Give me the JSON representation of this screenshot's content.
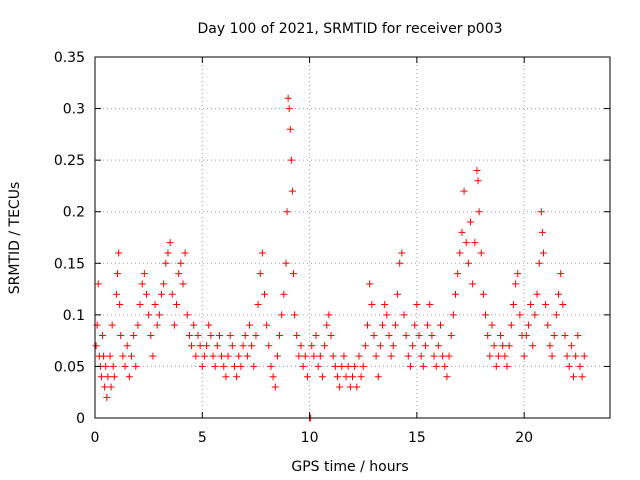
{
  "chart_data": {
    "type": "scatter",
    "title": "Day 100 of 2021, SRMTID for receiver p003",
    "xlabel": "GPS time / hours",
    "ylabel": "SRMTID / TECUs",
    "xlim": [
      0,
      24
    ],
    "ylim": [
      0,
      0.35
    ],
    "xticks": [
      0,
      5,
      10,
      15,
      20
    ],
    "xtick_labels": [
      "0",
      "5",
      "10",
      "15",
      "20"
    ],
    "yticks": [
      0,
      0.05,
      0.1,
      0.15,
      0.2,
      0.25,
      0.3,
      0.35
    ],
    "ytick_labels": [
      "0",
      "0.05",
      "0.1",
      "0.15",
      "0.2",
      "0.25",
      "0.3",
      "0.35"
    ],
    "grid": true,
    "marker": "plus",
    "color": "#ff0000",
    "series": [
      {
        "name": "SRMTID",
        "points": [
          [
            0.05,
            0.07
          ],
          [
            0.1,
            0.09
          ],
          [
            0.15,
            0.13
          ],
          [
            0.2,
            0.06
          ],
          [
            0.25,
            0.05
          ],
          [
            0.3,
            0.04
          ],
          [
            0.35,
            0.08
          ],
          [
            0.4,
            0.06
          ],
          [
            0.45,
            0.03
          ],
          [
            0.5,
            0.05
          ],
          [
            0.55,
            0.02
          ],
          [
            0.6,
            0.04
          ],
          [
            0.7,
            0.06
          ],
          [
            0.75,
            0.03
          ],
          [
            0.8,
            0.09
          ],
          [
            0.85,
            0.05
          ],
          [
            0.9,
            0.04
          ],
          [
            1.0,
            0.12
          ],
          [
            1.05,
            0.14
          ],
          [
            1.1,
            0.16
          ],
          [
            1.15,
            0.11
          ],
          [
            1.2,
            0.08
          ],
          [
            1.3,
            0.06
          ],
          [
            1.4,
            0.05
          ],
          [
            1.5,
            0.07
          ],
          [
            1.6,
            0.04
          ],
          [
            1.7,
            0.06
          ],
          [
            1.8,
            0.08
          ],
          [
            1.9,
            0.05
          ],
          [
            2.0,
            0.09
          ],
          [
            2.1,
            0.11
          ],
          [
            2.2,
            0.13
          ],
          [
            2.3,
            0.14
          ],
          [
            2.4,
            0.12
          ],
          [
            2.5,
            0.1
          ],
          [
            2.6,
            0.08
          ],
          [
            2.7,
            0.06
          ],
          [
            2.8,
            0.11
          ],
          [
            2.9,
            0.09
          ],
          [
            3.0,
            0.1
          ],
          [
            3.1,
            0.12
          ],
          [
            3.2,
            0.13
          ],
          [
            3.3,
            0.15
          ],
          [
            3.4,
            0.16
          ],
          [
            3.5,
            0.17
          ],
          [
            3.6,
            0.12
          ],
          [
            3.7,
            0.09
          ],
          [
            3.8,
            0.11
          ],
          [
            3.9,
            0.14
          ],
          [
            4.0,
            0.15
          ],
          [
            4.1,
            0.13
          ],
          [
            4.2,
            0.16
          ],
          [
            4.3,
            0.1
          ],
          [
            4.4,
            0.08
          ],
          [
            4.5,
            0.07
          ],
          [
            4.6,
            0.09
          ],
          [
            4.7,
            0.06
          ],
          [
            4.8,
            0.08
          ],
          [
            4.9,
            0.07
          ],
          [
            5.0,
            0.05
          ],
          [
            5.1,
            0.06
          ],
          [
            5.2,
            0.07
          ],
          [
            5.3,
            0.09
          ],
          [
            5.4,
            0.08
          ],
          [
            5.5,
            0.06
          ],
          [
            5.6,
            0.05
          ],
          [
            5.7,
            0.07
          ],
          [
            5.8,
            0.08
          ],
          [
            5.9,
            0.06
          ],
          [
            6.0,
            0.05
          ],
          [
            6.1,
            0.04
          ],
          [
            6.2,
            0.06
          ],
          [
            6.3,
            0.08
          ],
          [
            6.4,
            0.07
          ],
          [
            6.5,
            0.05
          ],
          [
            6.6,
            0.04
          ],
          [
            6.7,
            0.06
          ],
          [
            6.8,
            0.05
          ],
          [
            6.9,
            0.07
          ],
          [
            7.0,
            0.08
          ],
          [
            7.1,
            0.06
          ],
          [
            7.2,
            0.09
          ],
          [
            7.3,
            0.07
          ],
          [
            7.4,
            0.05
          ],
          [
            7.5,
            0.08
          ],
          [
            7.6,
            0.11
          ],
          [
            7.7,
            0.14
          ],
          [
            7.8,
            0.16
          ],
          [
            7.9,
            0.12
          ],
          [
            8.0,
            0.09
          ],
          [
            8.1,
            0.07
          ],
          [
            8.2,
            0.05
          ],
          [
            8.3,
            0.04
          ],
          [
            8.4,
            0.03
          ],
          [
            8.5,
            0.06
          ],
          [
            8.6,
            0.08
          ],
          [
            8.7,
            0.1
          ],
          [
            8.8,
            0.12
          ],
          [
            8.9,
            0.15
          ],
          [
            8.95,
            0.2
          ],
          [
            9.0,
            0.31
          ],
          [
            9.05,
            0.3
          ],
          [
            9.1,
            0.28
          ],
          [
            9.15,
            0.25
          ],
          [
            9.2,
            0.22
          ],
          [
            9.25,
            0.14
          ],
          [
            9.3,
            0.1
          ],
          [
            9.4,
            0.08
          ],
          [
            9.5,
            0.06
          ],
          [
            9.6,
            0.07
          ],
          [
            9.7,
            0.05
          ],
          [
            9.8,
            0.06
          ],
          [
            9.9,
            0.04
          ],
          [
            10.0,
            0.0
          ],
          [
            10.05,
            0.0
          ],
          [
            10.1,
            0.07
          ],
          [
            10.2,
            0.06
          ],
          [
            10.3,
            0.08
          ],
          [
            10.4,
            0.05
          ],
          [
            10.5,
            0.06
          ],
          [
            10.6,
            0.04
          ],
          [
            10.7,
            0.07
          ],
          [
            10.8,
            0.09
          ],
          [
            10.9,
            0.1
          ],
          [
            11.0,
            0.08
          ],
          [
            11.1,
            0.06
          ],
          [
            11.2,
            0.05
          ],
          [
            11.3,
            0.04
          ],
          [
            11.4,
            0.03
          ],
          [
            11.5,
            0.05
          ],
          [
            11.6,
            0.06
          ],
          [
            11.7,
            0.04
          ],
          [
            11.8,
            0.05
          ],
          [
            11.9,
            0.03
          ],
          [
            12.0,
            0.04
          ],
          [
            12.1,
            0.05
          ],
          [
            12.2,
            0.03
          ],
          [
            12.3,
            0.06
          ],
          [
            12.4,
            0.04
          ],
          [
            12.5,
            0.05
          ],
          [
            12.6,
            0.07
          ],
          [
            12.7,
            0.09
          ],
          [
            12.8,
            0.13
          ],
          [
            12.9,
            0.11
          ],
          [
            13.0,
            0.08
          ],
          [
            13.1,
            0.06
          ],
          [
            13.2,
            0.04
          ],
          [
            13.3,
            0.07
          ],
          [
            13.4,
            0.09
          ],
          [
            13.5,
            0.11
          ],
          [
            13.6,
            0.1
          ],
          [
            13.7,
            0.08
          ],
          [
            13.8,
            0.06
          ],
          [
            13.9,
            0.07
          ],
          [
            14.0,
            0.09
          ],
          [
            14.1,
            0.12
          ],
          [
            14.2,
            0.15
          ],
          [
            14.3,
            0.16
          ],
          [
            14.4,
            0.1
          ],
          [
            14.5,
            0.08
          ],
          [
            14.6,
            0.06
          ],
          [
            14.7,
            0.05
          ],
          [
            14.8,
            0.07
          ],
          [
            14.9,
            0.09
          ],
          [
            15.0,
            0.11
          ],
          [
            15.1,
            0.08
          ],
          [
            15.2,
            0.06
          ],
          [
            15.3,
            0.05
          ],
          [
            15.4,
            0.07
          ],
          [
            15.5,
            0.09
          ],
          [
            15.6,
            0.11
          ],
          [
            15.7,
            0.08
          ],
          [
            15.8,
            0.06
          ],
          [
            15.9,
            0.05
          ],
          [
            16.0,
            0.07
          ],
          [
            16.1,
            0.09
          ],
          [
            16.2,
            0.06
          ],
          [
            16.3,
            0.05
          ],
          [
            16.4,
            0.04
          ],
          [
            16.5,
            0.06
          ],
          [
            16.6,
            0.08
          ],
          [
            16.7,
            0.1
          ],
          [
            16.8,
            0.12
          ],
          [
            16.9,
            0.14
          ],
          [
            17.0,
            0.16
          ],
          [
            17.1,
            0.18
          ],
          [
            17.2,
            0.22
          ],
          [
            17.3,
            0.17
          ],
          [
            17.4,
            0.15
          ],
          [
            17.5,
            0.19
          ],
          [
            17.6,
            0.13
          ],
          [
            17.7,
            0.17
          ],
          [
            17.8,
            0.24
          ],
          [
            17.85,
            0.23
          ],
          [
            17.9,
            0.2
          ],
          [
            18.0,
            0.16
          ],
          [
            18.1,
            0.12
          ],
          [
            18.2,
            0.1
          ],
          [
            18.3,
            0.08
          ],
          [
            18.4,
            0.06
          ],
          [
            18.5,
            0.09
          ],
          [
            18.6,
            0.07
          ],
          [
            18.7,
            0.05
          ],
          [
            18.8,
            0.06
          ],
          [
            18.9,
            0.08
          ],
          [
            19.0,
            0.07
          ],
          [
            19.1,
            0.06
          ],
          [
            19.2,
            0.05
          ],
          [
            19.3,
            0.07
          ],
          [
            19.4,
            0.09
          ],
          [
            19.5,
            0.11
          ],
          [
            19.6,
            0.13
          ],
          [
            19.7,
            0.14
          ],
          [
            19.8,
            0.1
          ],
          [
            19.9,
            0.08
          ],
          [
            20.0,
            0.06
          ],
          [
            20.1,
            0.08
          ],
          [
            20.2,
            0.09
          ],
          [
            20.3,
            0.11
          ],
          [
            20.4,
            0.07
          ],
          [
            20.5,
            0.1
          ],
          [
            20.6,
            0.12
          ],
          [
            20.7,
            0.15
          ],
          [
            20.8,
            0.2
          ],
          [
            20.85,
            0.18
          ],
          [
            20.9,
            0.16
          ],
          [
            21.0,
            0.11
          ],
          [
            21.1,
            0.09
          ],
          [
            21.2,
            0.07
          ],
          [
            21.3,
            0.06
          ],
          [
            21.4,
            0.08
          ],
          [
            21.5,
            0.1
          ],
          [
            21.6,
            0.12
          ],
          [
            21.7,
            0.14
          ],
          [
            21.8,
            0.11
          ],
          [
            21.9,
            0.08
          ],
          [
            22.0,
            0.06
          ],
          [
            22.1,
            0.05
          ],
          [
            22.2,
            0.07
          ],
          [
            22.3,
            0.04
          ],
          [
            22.4,
            0.06
          ],
          [
            22.5,
            0.08
          ],
          [
            22.6,
            0.05
          ],
          [
            22.7,
            0.04
          ],
          [
            22.8,
            0.06
          ]
        ]
      }
    ]
  }
}
